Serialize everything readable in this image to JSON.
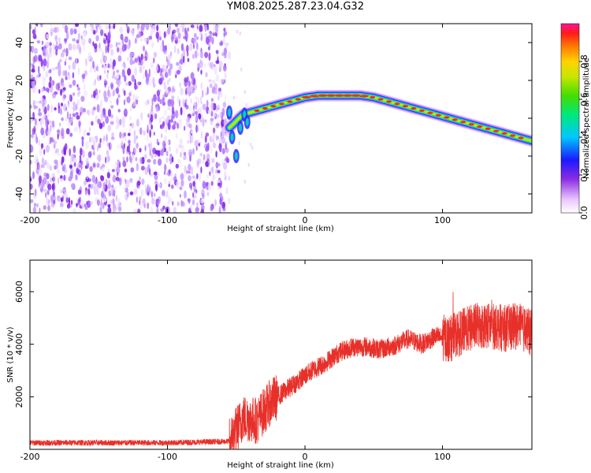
{
  "title": "YM08.2025.287.23.04.G32",
  "chart_data": [
    {
      "type": "heatmap",
      "name": "spectrogram",
      "xlabel": "Height of straight line (km)",
      "ylabel": "Frequency (Hz)",
      "xlim": [
        -200,
        165
      ],
      "ylim": [
        -50,
        50
      ],
      "x_ticks": [
        -200,
        -100,
        0,
        100
      ],
      "y_ticks": [
        -40,
        -20,
        0,
        20,
        40
      ],
      "ridge_line": {
        "x": [
          -55,
          -52,
          -48,
          -45,
          -40,
          -30,
          -20,
          -10,
          0,
          10,
          20,
          30,
          40,
          50,
          60,
          70,
          80,
          90,
          100,
          110,
          120,
          130,
          140,
          150,
          160,
          165
        ],
        "y": [
          -5,
          -3,
          0,
          2,
          3,
          5,
          7,
          9,
          11,
          12,
          12,
          12,
          12,
          11,
          9,
          7,
          5,
          3,
          1,
          -1,
          -3,
          -5,
          -7,
          -9,
          -11,
          -12
        ]
      },
      "noise_region_x": [
        -200,
        -55
      ],
      "colorbar": {
        "label": "Normalized spectral amplitude",
        "range": [
          0,
          1
        ],
        "ticks": [
          "0.0",
          "0.2",
          "0.4",
          "0.6",
          "0.8"
        ]
      }
    },
    {
      "type": "line",
      "name": "snr",
      "color": "#e8302a",
      "xlabel": "Height of straight line (km)",
      "ylabel": "SNR (10 * v/v)",
      "xlim": [
        -200,
        165
      ],
      "ylim": [
        0,
        7200
      ],
      "x_ticks": [
        -200,
        -100,
        0,
        100
      ],
      "y_ticks": [
        2000,
        4000,
        6000
      ],
      "trend": {
        "x": [
          -200,
          -150,
          -100,
          -55,
          -45,
          -35,
          -25,
          -15,
          -5,
          5,
          15,
          25,
          35,
          45,
          55,
          65,
          75,
          85,
          95,
          105,
          115,
          125,
          135,
          145,
          155,
          165
        ],
        "y": [
          250,
          250,
          250,
          300,
          1200,
          1100,
          1800,
          2200,
          2600,
          3000,
          3300,
          3700,
          3900,
          3900,
          3800,
          3950,
          4200,
          4000,
          4300,
          4200,
          4500,
          4700,
          4700,
          4600,
          4700,
          4400
        ]
      }
    }
  ]
}
